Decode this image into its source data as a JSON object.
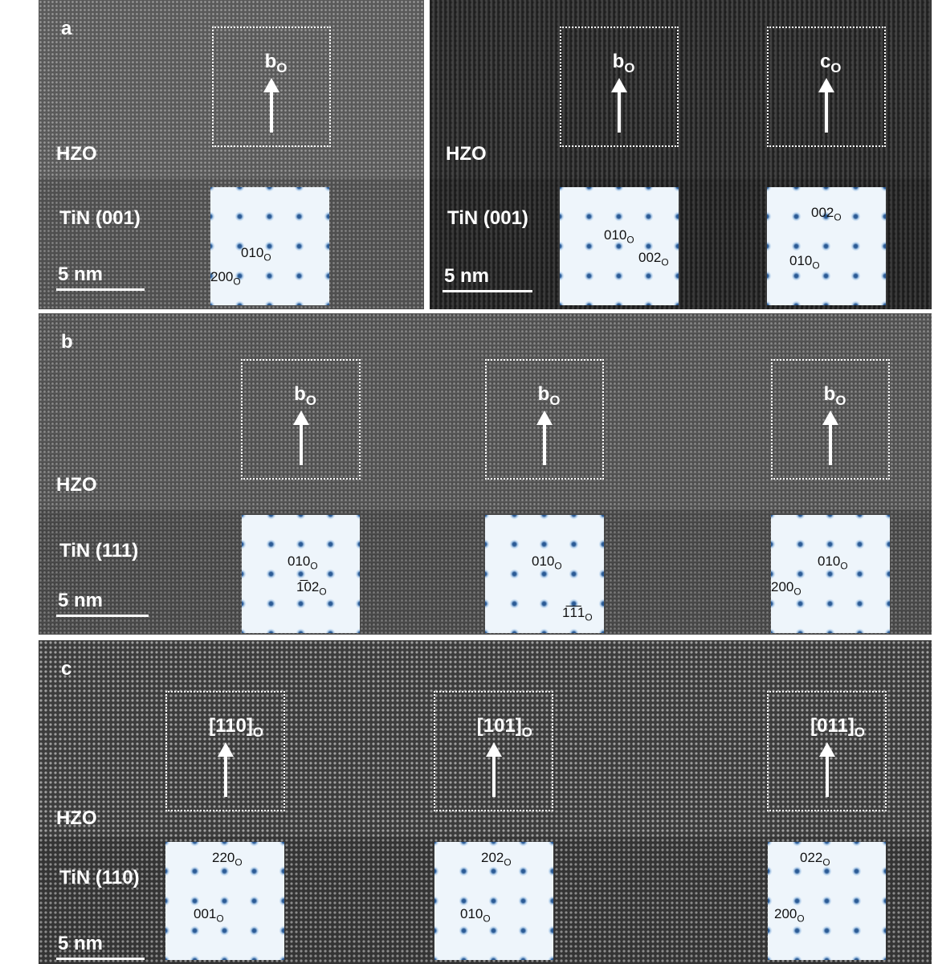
{
  "panels": [
    {
      "id": "a-left",
      "letter": "a",
      "layer_top": "HZO",
      "layer_bottom": "TiN (001)",
      "scale": "5 nm",
      "boxes": [
        {
          "label": "b",
          "sub": "O"
        }
      ],
      "ffts": [
        {
          "spots": [
            {
              "t": "010",
              "sub": "O"
            },
            {
              "t": "200",
              "sub": "O"
            }
          ]
        }
      ]
    },
    {
      "id": "a-right",
      "letter": "",
      "layer_top": "HZO",
      "layer_bottom": "TiN (001)",
      "scale": "5 nm",
      "boxes": [
        {
          "label": "b",
          "sub": "O"
        },
        {
          "label": "c",
          "sub": "O"
        }
      ],
      "ffts": [
        {
          "spots": [
            {
              "t": "010",
              "sub": "O"
            },
            {
              "t": "002",
              "sub": "O"
            }
          ]
        },
        {
          "spots": [
            {
              "t": "002",
              "sub": "O"
            },
            {
              "t": "010",
              "sub": "O"
            }
          ]
        }
      ]
    },
    {
      "id": "b",
      "letter": "b",
      "layer_top": "HZO",
      "layer_bottom": "TiN (111)",
      "scale": "5 nm",
      "boxes": [
        {
          "label": "b",
          "sub": "O"
        },
        {
          "label": "b",
          "sub": "O"
        },
        {
          "label": "b",
          "sub": "O"
        }
      ],
      "ffts": [
        {
          "spots": [
            {
              "t": "010",
              "sub": "O"
            },
            {
              "t": "1̅02",
              "sub": "O"
            }
          ]
        },
        {
          "spots": [
            {
              "t": "010",
              "sub": "O"
            },
            {
              "t": "1̅1̅1",
              "sub": "O"
            }
          ]
        },
        {
          "spots": [
            {
              "t": "010",
              "sub": "O"
            },
            {
              "t": "200",
              "sub": "O"
            }
          ]
        }
      ]
    },
    {
      "id": "c",
      "letter": "c",
      "layer_top": "HZO",
      "layer_bottom": "TiN (110)",
      "scale": "5 nm",
      "boxes": [
        {
          "label": "[110]",
          "sub": "O"
        },
        {
          "label": "[101]",
          "sub": "O"
        },
        {
          "label": "[011]",
          "sub": "O"
        }
      ],
      "ffts": [
        {
          "spots": [
            {
              "t": "220",
              "sub": "O"
            },
            {
              "t": "001",
              "sub": "O"
            }
          ]
        },
        {
          "spots": [
            {
              "t": "202",
              "sub": "O"
            },
            {
              "t": "010",
              "sub": "O"
            }
          ]
        },
        {
          "spots": [
            {
              "t": "022",
              "sub": "O"
            },
            {
              "t": "200",
              "sub": "O"
            }
          ]
        }
      ]
    }
  ]
}
